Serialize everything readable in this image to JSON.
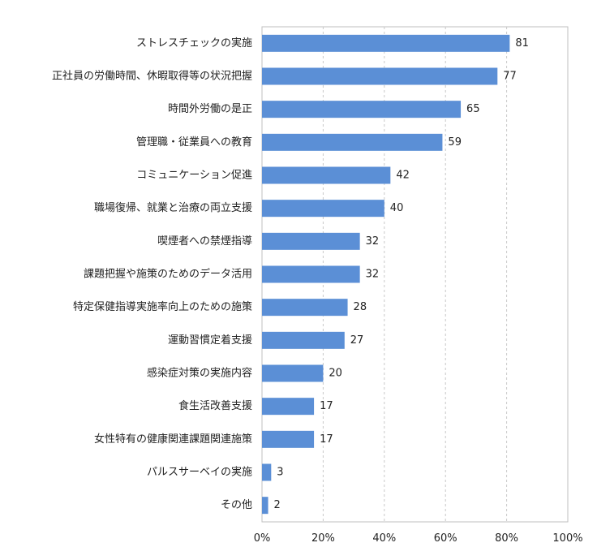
{
  "chart_data": {
    "type": "bar",
    "orientation": "horizontal",
    "categories": [
      "ストレスチェックの実施",
      "正社員の労働時間、休暇取得等の状況把握",
      "時間外労働の是正",
      "管理職・従業員への教育",
      "コミュニケーション促進",
      "職場復帰、就業と治療の両立支援",
      "喫煙者への禁煙指導",
      "課題把握や施策のためのデータ活用",
      "特定保健指導実施率向上のための施策",
      "運動習慣定着支援",
      "感染症対策の実施内容",
      "食生活改善支援",
      "女性特有の健康関連課題関連施策",
      "パルスサーベイの実施",
      "その他"
    ],
    "values": [
      81,
      77,
      65,
      59,
      42,
      40,
      32,
      32,
      28,
      27,
      20,
      17,
      17,
      3,
      2
    ],
    "value_labels": [
      "81",
      "77",
      "65",
      "59",
      "42",
      "40",
      "32",
      "32",
      "28",
      "27",
      "20",
      "17",
      "17",
      "3",
      "2"
    ],
    "xlim": [
      0,
      100
    ],
    "xticks": [
      0,
      20,
      40,
      60,
      80,
      100
    ],
    "xtick_labels": [
      "0%",
      "20%",
      "40%",
      "60%",
      "80%",
      "100%"
    ],
    "grid": "vertical dashed",
    "bar_color": "#5b8fd6",
    "grid_color": "#c8c8c8",
    "frame_color": "#bfbfbf"
  }
}
